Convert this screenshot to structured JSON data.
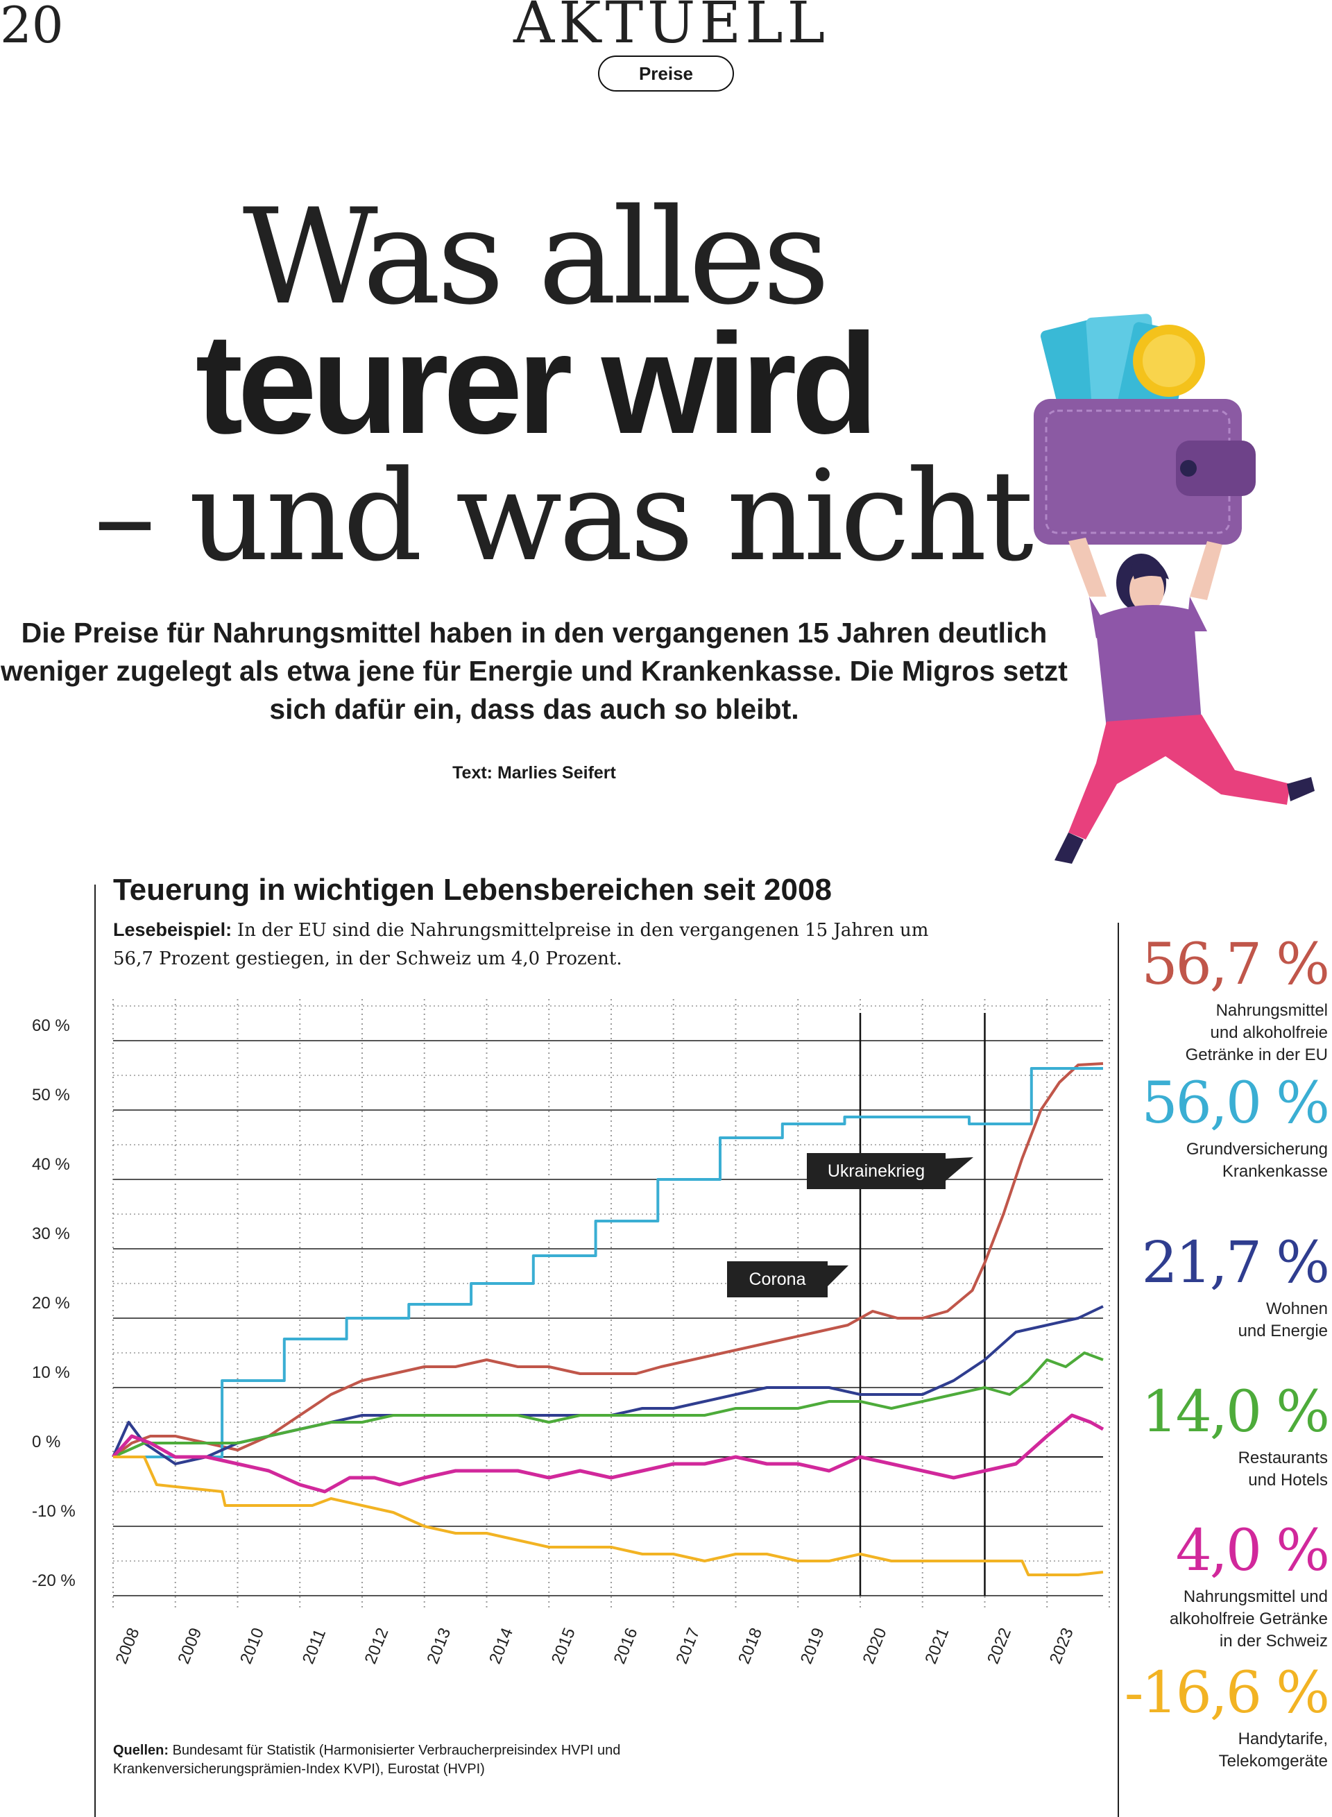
{
  "page": {
    "number": "20",
    "section": "AKTUELL",
    "tag": "Preise"
  },
  "headline": {
    "line1": "Was alles",
    "line2": "teurer wird",
    "line3": "– und was nicht"
  },
  "lede": "Die Preise für Nahrungsmittel haben in den vergangenen 15 Jahren deutlich weniger zugelegt als etwa jene für Energie und Krankenkasse. Die Migros setzt sich dafür ein, dass das auch so bleibt.",
  "byline": "Text: Marlies Seifert",
  "illustration": {
    "name": "woman-holding-wallet-illustration",
    "colors": {
      "wallet": "#8b5aa3",
      "wallet_dark": "#6e4289",
      "money": "#39b9d6",
      "coin": "#f4c21b",
      "shirt": "#8e56a8",
      "pants": "#e8407d",
      "hair": "#2a2350",
      "skin": "#f2c8b6"
    }
  },
  "chart_data": {
    "type": "line",
    "title": "Teuerung in wichtigen Lebensbereichen seit 2008",
    "reading_label": "Lesebeispiel:",
    "reading_text": "In der EU sind die Nahrungsmittelpreise in den vergangenen 15 Jahren um 56,7 Prozent gestiegen, in der Schweiz um 4,0 Prozent.",
    "y_ticks": [
      "60 %",
      "50 %",
      "40 %",
      "30 %",
      "20 %",
      "10 %",
      "0 %",
      "-10 %",
      "-20 %"
    ],
    "y_tick_values": [
      60,
      50,
      40,
      30,
      20,
      10,
      0,
      -10,
      -20
    ],
    "ylim": [
      -22,
      66
    ],
    "x_ticks": [
      "2008",
      "2009",
      "2010",
      "2011",
      "2012",
      "2013",
      "2014",
      "2015",
      "2016",
      "2017",
      "2018",
      "2019",
      "2020",
      "2021",
      "2022",
      "2023"
    ],
    "xlim": [
      2008,
      2023.9
    ],
    "annotations": [
      {
        "label": "Ukrainekrieg",
        "x": 2022.17,
        "y": 41
      },
      {
        "label": "Corona",
        "x": 2020.2,
        "y": 26
      }
    ],
    "series": [
      {
        "name": "Nahrungsmittel und alkoholfreie Getränke in der EU",
        "color": "#c0564a",
        "final": "56,7 %",
        "points": [
          [
            2008,
            0
          ],
          [
            2008.3,
            2
          ],
          [
            2008.6,
            3
          ],
          [
            2009,
            3
          ],
          [
            2009.5,
            2
          ],
          [
            2010,
            1
          ],
          [
            2010.5,
            3
          ],
          [
            2011,
            6
          ],
          [
            2011.5,
            9
          ],
          [
            2012,
            11
          ],
          [
            2012.5,
            12
          ],
          [
            2013,
            13
          ],
          [
            2013.5,
            13
          ],
          [
            2014,
            14
          ],
          [
            2014.5,
            13
          ],
          [
            2015,
            13
          ],
          [
            2015.5,
            12
          ],
          [
            2016,
            12
          ],
          [
            2016.4,
            12
          ],
          [
            2016.8,
            13
          ],
          [
            2017.3,
            14
          ],
          [
            2017.8,
            15
          ],
          [
            2018.3,
            16
          ],
          [
            2018.8,
            17
          ],
          [
            2019.3,
            18
          ],
          [
            2019.8,
            19
          ],
          [
            2020.2,
            21
          ],
          [
            2020.6,
            20
          ],
          [
            2021,
            20
          ],
          [
            2021.4,
            21
          ],
          [
            2021.8,
            24
          ],
          [
            2022,
            28
          ],
          [
            2022.3,
            35
          ],
          [
            2022.6,
            43
          ],
          [
            2022.9,
            50
          ],
          [
            2023.2,
            54
          ],
          [
            2023.5,
            56.5
          ],
          [
            2023.9,
            56.7
          ]
        ]
      },
      {
        "name": "Grundversicherung Krankenkasse",
        "color": "#3aaed3",
        "final": "56,0 %",
        "points": [
          [
            2008,
            0
          ],
          [
            2009.75,
            0
          ],
          [
            2009.75,
            11
          ],
          [
            2010.75,
            11
          ],
          [
            2010.75,
            17
          ],
          [
            2011.75,
            17
          ],
          [
            2011.75,
            20
          ],
          [
            2012.75,
            20
          ],
          [
            2012.75,
            22
          ],
          [
            2013.75,
            22
          ],
          [
            2013.75,
            25
          ],
          [
            2014.75,
            25
          ],
          [
            2014.75,
            29
          ],
          [
            2015.75,
            29
          ],
          [
            2015.75,
            34
          ],
          [
            2016.75,
            34
          ],
          [
            2016.75,
            40
          ],
          [
            2017.75,
            40
          ],
          [
            2017.75,
            46
          ],
          [
            2018.75,
            46
          ],
          [
            2018.75,
            48
          ],
          [
            2019.75,
            48
          ],
          [
            2019.75,
            49
          ],
          [
            2020.75,
            49
          ],
          [
            2020.75,
            49
          ],
          [
            2021.75,
            49
          ],
          [
            2021.75,
            48
          ],
          [
            2022.75,
            48
          ],
          [
            2022.75,
            56
          ],
          [
            2023.9,
            56
          ]
        ]
      },
      {
        "name": "Wohnen und Energie",
        "color": "#2f3d8f",
        "final": "21,7 %",
        "points": [
          [
            2008,
            0
          ],
          [
            2008.25,
            5
          ],
          [
            2008.5,
            2
          ],
          [
            2009,
            -1
          ],
          [
            2009.5,
            0
          ],
          [
            2010,
            2
          ],
          [
            2010.5,
            3
          ],
          [
            2011,
            4
          ],
          [
            2011.5,
            5
          ],
          [
            2012,
            6
          ],
          [
            2012.5,
            6
          ],
          [
            2013,
            6
          ],
          [
            2013.5,
            6
          ],
          [
            2014,
            6
          ],
          [
            2014.5,
            6
          ],
          [
            2015,
            6
          ],
          [
            2015.5,
            6
          ],
          [
            2016,
            6
          ],
          [
            2016.5,
            7
          ],
          [
            2017,
            7
          ],
          [
            2017.5,
            8
          ],
          [
            2018,
            9
          ],
          [
            2018.5,
            10
          ],
          [
            2019,
            10
          ],
          [
            2019.5,
            10
          ],
          [
            2020,
            9
          ],
          [
            2020.5,
            9
          ],
          [
            2021,
            9
          ],
          [
            2021.5,
            11
          ],
          [
            2022,
            14
          ],
          [
            2022.5,
            18
          ],
          [
            2023,
            19
          ],
          [
            2023.5,
            20
          ],
          [
            2023.9,
            21.7
          ]
        ]
      },
      {
        "name": "Restaurants und Hotels",
        "color": "#4dab3a",
        "final": "14,0 %",
        "points": [
          [
            2008,
            0
          ],
          [
            2008.5,
            2
          ],
          [
            2009,
            2
          ],
          [
            2009.5,
            2
          ],
          [
            2010,
            2
          ],
          [
            2010.5,
            3
          ],
          [
            2011,
            4
          ],
          [
            2011.5,
            5
          ],
          [
            2012,
            5
          ],
          [
            2012.5,
            6
          ],
          [
            2013,
            6
          ],
          [
            2013.5,
            6
          ],
          [
            2014,
            6
          ],
          [
            2014.5,
            6
          ],
          [
            2015,
            5
          ],
          [
            2015.5,
            6
          ],
          [
            2016,
            6
          ],
          [
            2016.5,
            6
          ],
          [
            2017,
            6
          ],
          [
            2017.5,
            6
          ],
          [
            2018,
            7
          ],
          [
            2018.5,
            7
          ],
          [
            2019,
            7
          ],
          [
            2019.5,
            8
          ],
          [
            2020,
            8
          ],
          [
            2020.5,
            7
          ],
          [
            2021,
            8
          ],
          [
            2021.5,
            9
          ],
          [
            2022,
            10
          ],
          [
            2022.4,
            9
          ],
          [
            2022.7,
            11
          ],
          [
            2023,
            14
          ],
          [
            2023.3,
            13
          ],
          [
            2023.6,
            15
          ],
          [
            2023.9,
            14
          ]
        ]
      },
      {
        "name": "Nahrungsmittel und alkoholfreie Getränke in der Schweiz",
        "color": "#d1289b",
        "final": "4,0 %",
        "points": [
          [
            2008,
            0
          ],
          [
            2008.3,
            3
          ],
          [
            2008.6,
            2
          ],
          [
            2009,
            0
          ],
          [
            2009.5,
            0
          ],
          [
            2010,
            -1
          ],
          [
            2010.5,
            -2
          ],
          [
            2011,
            -4
          ],
          [
            2011.4,
            -5
          ],
          [
            2011.8,
            -3
          ],
          [
            2012.2,
            -3
          ],
          [
            2012.6,
            -4
          ],
          [
            2013,
            -3
          ],
          [
            2013.5,
            -2
          ],
          [
            2014,
            -2
          ],
          [
            2014.5,
            -2
          ],
          [
            2015,
            -3
          ],
          [
            2015.5,
            -2
          ],
          [
            2016,
            -3
          ],
          [
            2016.5,
            -2
          ],
          [
            2017,
            -1
          ],
          [
            2017.5,
            -1
          ],
          [
            2018,
            0
          ],
          [
            2018.5,
            -1
          ],
          [
            2019,
            -1
          ],
          [
            2019.5,
            -2
          ],
          [
            2020,
            0
          ],
          [
            2020.5,
            -1
          ],
          [
            2021,
            -2
          ],
          [
            2021.5,
            -3
          ],
          [
            2022,
            -2
          ],
          [
            2022.5,
            -1
          ],
          [
            2023,
            3
          ],
          [
            2023.4,
            6
          ],
          [
            2023.7,
            5
          ],
          [
            2023.9,
            4
          ]
        ]
      },
      {
        "name": "Handytarife, Telekomgeräte",
        "color": "#f2b323",
        "final": "-16,6 %",
        "points": [
          [
            2008,
            0
          ],
          [
            2008.5,
            0
          ],
          [
            2008.7,
            -4
          ],
          [
            2009.75,
            -5
          ],
          [
            2009.8,
            -7
          ],
          [
            2011.2,
            -7
          ],
          [
            2011.5,
            -6
          ],
          [
            2012,
            -7
          ],
          [
            2012.5,
            -8
          ],
          [
            2013,
            -10
          ],
          [
            2013.5,
            -11
          ],
          [
            2014,
            -11
          ],
          [
            2014.5,
            -12
          ],
          [
            2015,
            -13
          ],
          [
            2015.5,
            -13
          ],
          [
            2016,
            -13
          ],
          [
            2016.5,
            -14
          ],
          [
            2017,
            -14
          ],
          [
            2017.5,
            -15
          ],
          [
            2018,
            -14
          ],
          [
            2018.5,
            -14
          ],
          [
            2019,
            -15
          ],
          [
            2019.5,
            -15
          ],
          [
            2020,
            -14
          ],
          [
            2020.5,
            -15
          ],
          [
            2021,
            -15
          ],
          [
            2021.5,
            -15
          ],
          [
            2022,
            -15
          ],
          [
            2022.6,
            -15
          ],
          [
            2022.7,
            -17
          ],
          [
            2023,
            -17
          ],
          [
            2023.5,
            -17
          ],
          [
            2023.9,
            -16.6
          ]
        ]
      }
    ],
    "sources_label": "Quellen:",
    "sources_text": "Bundesamt für Statistik (Harmonisierter Verbraucherpreisindex HVPI und Krankenversicherungsprämien-Index KVPI), Eurostat (HVPI)"
  },
  "stats": [
    {
      "value": "56,7 %",
      "color": "#c0564a",
      "desc": [
        "Nahrungsmittel",
        "und alkoholfreie",
        "Getränke in der EU"
      ]
    },
    {
      "value": "56,0 %",
      "color": "#3aaed3",
      "desc": [
        "Grundversicherung",
        "Krankenkasse"
      ]
    },
    {
      "value": "21,7 %",
      "color": "#2f3d8f",
      "desc": [
        "Wohnen",
        "und Energie"
      ]
    },
    {
      "value": "14,0 %",
      "color": "#4dab3a",
      "desc": [
        "Restaurants",
        "und Hotels"
      ]
    },
    {
      "value": "4,0 %",
      "color": "#d1289b",
      "desc": [
        "Nahrungsmittel und",
        "alkoholfreie Getränke",
        "in der Schweiz"
      ]
    },
    {
      "value": "-16,6 %",
      "color": "#f2b323",
      "desc": [
        "Handytarife,",
        "Telekomgeräte"
      ]
    }
  ]
}
